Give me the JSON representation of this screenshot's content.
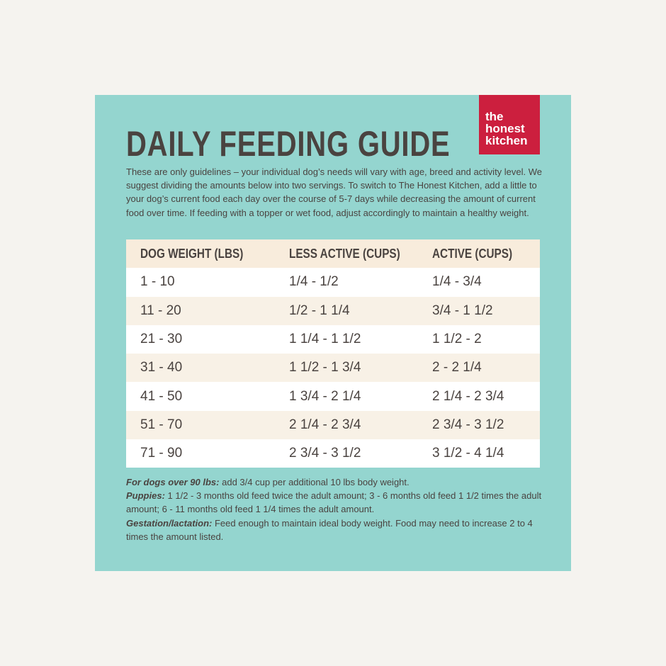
{
  "logo": {
    "lines": [
      "the",
      "honest",
      "kitchen"
    ]
  },
  "title": "DAILY FEEDING GUIDE",
  "intro": "These are only guidelines – your individual dog’s needs will vary with age, breed and activity level. We suggest dividing the amounts below into two servings. To switch to The Honest Kitchen, add a little to your dog’s current food each day over the course of 5-7 days while decreasing the amount of current food over time. If feeding with a topper or wet food, adjust accordingly to maintain a healthy weight.",
  "table": {
    "headers": [
      "DOG WEIGHT (LBS)",
      "LESS ACTIVE (CUPS)",
      "ACTIVE (CUPS)"
    ],
    "rows": [
      [
        "1 - 10",
        "1/4 - 1/2",
        "1/4 - 3/4"
      ],
      [
        "11 - 20",
        "1/2 - 1 1/4",
        "3/4 - 1 1/2"
      ],
      [
        "21 - 30",
        "1 1/4 - 1 1/2",
        "1 1/2 - 2"
      ],
      [
        "31 - 40",
        "1 1/2 - 1 3/4",
        "2 - 2 1/4"
      ],
      [
        "41 - 50",
        "1 3/4 - 2 1/4",
        "2 1/4 - 2 3/4"
      ],
      [
        "51 - 70",
        "2 1/4 - 2 3/4",
        "2 3/4 - 3 1/2"
      ],
      [
        "71 - 90",
        "2 3/4 - 3 1/2",
        "3 1/2 - 4 1/4"
      ]
    ]
  },
  "notes": [
    {
      "label": "For dogs over 90 lbs:",
      "text": "add 3/4 cup per additional 10 lbs body weight."
    },
    {
      "label": "Puppies:",
      "text": "1 1/2 - 3 months old feed twice the adult amount; 3 - 6 months old feed 1 1/2 times the adult amount; 6 - 11 months old feed 1 1/4 times the adult amount."
    },
    {
      "label": "Gestation/lactation:",
      "text": "Feed enough to maintain ideal body weight. Food may need to increase 2 to 4 times the amount listed."
    }
  ]
}
